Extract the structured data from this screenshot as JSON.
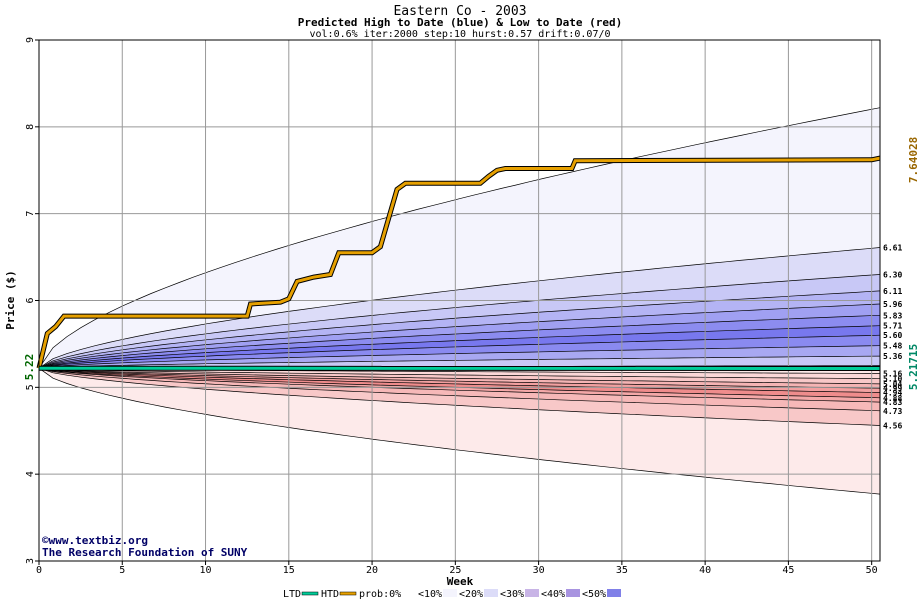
{
  "chart_data": {
    "type": "area",
    "title": "Eastern Co - 2003",
    "subtitle": "Predicted High to Date (blue) &  Low to Date (red)",
    "params": "vol:0.6% iter:2000 step:10 hurst:0.57 drift:0.07/0",
    "xlabel": "Week",
    "ylabel": "Price ($)",
    "xlim": [
      0,
      50.5
    ],
    "ylim": [
      3,
      9
    ],
    "x_ticks": [
      "0",
      "5",
      "10",
      "15",
      "20",
      "25",
      "30",
      "35",
      "40",
      "45",
      "50"
    ],
    "y_ticks": [
      "3",
      "4",
      "5",
      "6",
      "7",
      "8",
      "9"
    ],
    "grid": true,
    "start_value": "5.22",
    "start_price": 5.22,
    "htd_label": "7.64028",
    "ltd_label": "5.21715",
    "high_end_labels": [
      "6.61",
      "6.30",
      "6.11",
      "5.96",
      "5.83",
      "5.71",
      "5.60",
      "5.48",
      "5.36"
    ],
    "high_end_values": [
      8.22,
      6.61,
      6.3,
      6.11,
      5.96,
      5.83,
      5.71,
      5.6,
      5.48,
      5.36,
      5.25
    ],
    "low_end_labels": [
      "5.16",
      "5.10",
      "5.04",
      "4.99",
      "4.94",
      "4.88",
      "4.83",
      "4.73",
      "4.56"
    ],
    "low_end_values": [
      5.2,
      5.16,
      5.1,
      5.04,
      4.99,
      4.94,
      4.88,
      4.83,
      4.73,
      4.56,
      3.77
    ],
    "series": [
      {
        "name": "HTD",
        "color": "#e6a000",
        "x": [
          0,
          0.5,
          1,
          1.5,
          12.5,
          12.7,
          14.5,
          15,
          15.5,
          16.5,
          17.5,
          18,
          20,
          20.5,
          21.5,
          22,
          26.5,
          27,
          27.5,
          28,
          32,
          32.2,
          50,
          50.5
        ],
        "y": [
          5.22,
          5.62,
          5.7,
          5.82,
          5.82,
          5.96,
          5.98,
          6.02,
          6.22,
          6.27,
          6.3,
          6.55,
          6.55,
          6.62,
          7.28,
          7.35,
          7.35,
          7.43,
          7.5,
          7.52,
          7.52,
          7.61,
          7.62,
          7.64
        ]
      },
      {
        "name": "LTD",
        "color": "#00cc99",
        "x": [
          0,
          50.5
        ],
        "y": [
          5.22,
          5.217
        ]
      }
    ],
    "legend_items": [
      "LTD",
      "HTD",
      "prob:0%",
      "<10%",
      "<20%",
      "<30%",
      "<40%",
      "<50%"
    ],
    "legend_colors": [
      "#00cc99",
      "#e6a000",
      "#ffffff",
      "#f4f4fd",
      "#dcdcf8",
      "#c8b4e6",
      "#a894e0",
      "#8080e8"
    ],
    "band_blue_colors": [
      "#f4f4fd",
      "#dcdcf8",
      "#c8c8f6",
      "#b4b4f4",
      "#a0a0f2",
      "#8c8cf0",
      "#7878ee",
      "#8a8af0",
      "#a8a8f2",
      "#c8c8f6"
    ],
    "band_red_colors": [
      "#fde8e8",
      "#fbd8d8",
      "#f8c8c8",
      "#f5b4b4",
      "#f2a0a0",
      "#ef8c8c",
      "#f4a8a8",
      "#f6b8b8",
      "#f8c8c8",
      "#fdeaea"
    ]
  },
  "credit": {
    "line1": "©www.textbiz.org",
    "line2": "The Research Foundation of SUNY"
  }
}
